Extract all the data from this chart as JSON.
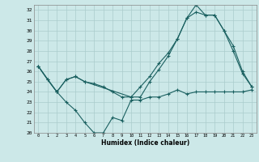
{
  "xlabel": "Humidex (Indice chaleur)",
  "bg_color": "#cce8e8",
  "line_color": "#1a6060",
  "grid_color": "#aacccc",
  "xlim": [
    -0.5,
    23.5
  ],
  "ylim": [
    20,
    32.5
  ],
  "xticks": [
    0,
    1,
    2,
    3,
    4,
    5,
    6,
    7,
    8,
    9,
    10,
    11,
    12,
    13,
    14,
    15,
    16,
    17,
    18,
    19,
    20,
    21,
    22,
    23
  ],
  "yticks": [
    20,
    21,
    22,
    23,
    24,
    25,
    26,
    27,
    28,
    29,
    30,
    31,
    32
  ],
  "line1_x": [
    0,
    1,
    2,
    3,
    4,
    5,
    6,
    7,
    8,
    9,
    10,
    11,
    12,
    13,
    14,
    15,
    16,
    17,
    18,
    19,
    20,
    21,
    22,
    23
  ],
  "line1_y": [
    26.5,
    25.2,
    24.0,
    23.0,
    22.2,
    21.0,
    20.0,
    20.0,
    21.5,
    21.2,
    23.2,
    23.2,
    23.5,
    23.5,
    23.8,
    24.2,
    23.8,
    24.0,
    24.0,
    24.0,
    24.0,
    24.0,
    24.0,
    24.2
  ],
  "line2_x": [
    0,
    1,
    2,
    3,
    4,
    5,
    6,
    7,
    8,
    9,
    10,
    11,
    12,
    13,
    14,
    15,
    16,
    17,
    18,
    19,
    20,
    21,
    22,
    23
  ],
  "line2_y": [
    26.5,
    25.2,
    24.0,
    25.2,
    25.5,
    25.0,
    24.8,
    24.5,
    24.0,
    23.5,
    23.5,
    23.5,
    25.0,
    26.2,
    27.5,
    29.2,
    31.2,
    32.5,
    31.5,
    31.5,
    30.0,
    28.5,
    26.0,
    24.5
  ],
  "line3_x": [
    0,
    2,
    3,
    4,
    5,
    10,
    11,
    12,
    13,
    14,
    15,
    16,
    17,
    18,
    19,
    20,
    21,
    22,
    23
  ],
  "line3_y": [
    26.5,
    24.0,
    25.2,
    25.5,
    25.0,
    23.5,
    24.5,
    25.5,
    26.8,
    27.8,
    29.2,
    31.2,
    31.8,
    31.5,
    31.5,
    30.0,
    28.0,
    25.8,
    24.5
  ]
}
